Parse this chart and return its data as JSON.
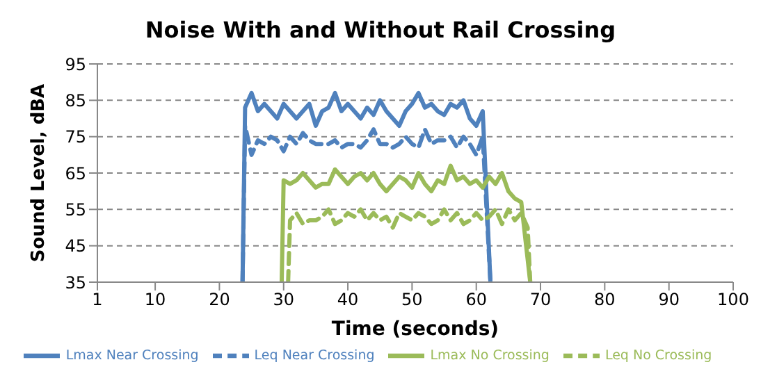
{
  "chart_data": {
    "type": "line",
    "title": "Noise With and Without Rail Crossing",
    "xlabel": "Time (seconds)",
    "ylabel": "Sound Level, dBA",
    "xlim": [
      1,
      100
    ],
    "xticks": [
      1,
      10,
      20,
      30,
      40,
      50,
      60,
      70,
      80,
      90,
      100
    ],
    "ylim": [
      35,
      95
    ],
    "yticks": [
      35,
      45,
      55,
      65,
      75,
      85,
      95
    ],
    "grid": "y",
    "legend": "bottom",
    "marker": "none",
    "series": [
      {
        "name": "Lmax Near Crossing",
        "color": "#4f81bd",
        "line_style": "solid",
        "x": [
          23.6,
          24,
          25,
          26,
          27,
          28,
          29,
          30,
          31,
          32,
          33,
          34,
          35,
          36,
          37,
          38,
          39,
          40,
          41,
          42,
          43,
          44,
          45,
          46,
          47,
          48,
          49,
          50,
          51,
          52,
          53,
          54,
          55,
          56,
          57,
          58,
          59,
          60,
          61,
          62.2
        ],
        "values": [
          35,
          83,
          87,
          82,
          84,
          82,
          80,
          84,
          82,
          80,
          82,
          84,
          78,
          82,
          83,
          87,
          82,
          84,
          82,
          80,
          83,
          81,
          85,
          82,
          80,
          78,
          82,
          84,
          87,
          83,
          84,
          82,
          81,
          84,
          83,
          85,
          80,
          78,
          82,
          35
        ]
      },
      {
        "name": "Leq Near Crossing",
        "color": "#4f81bd",
        "line_style": "dashed",
        "x": [
          23.6,
          24,
          25,
          26,
          27,
          28,
          29,
          30,
          31,
          32,
          33,
          34,
          35,
          36,
          37,
          38,
          39,
          40,
          41,
          42,
          43,
          44,
          45,
          46,
          47,
          48,
          49,
          50,
          51,
          52,
          53,
          54,
          55,
          56,
          57,
          58,
          59,
          60,
          61,
          62.2
        ],
        "values": [
          35,
          78,
          70,
          74,
          73,
          75,
          74,
          71,
          75,
          73,
          76,
          74,
          73,
          73,
          73,
          74,
          72,
          73,
          73,
          72,
          74,
          77,
          73,
          73,
          72,
          73,
          75,
          73,
          72,
          77,
          73,
          74,
          74,
          75,
          72,
          75,
          73,
          70,
          75,
          35
        ]
      },
      {
        "name": "Lmax No Crossing",
        "color": "#9bbb59",
        "line_style": "solid",
        "x": [
          29.7,
          30,
          31,
          32,
          33,
          34,
          35,
          36,
          37,
          38,
          39,
          40,
          41,
          42,
          43,
          44,
          45,
          46,
          47,
          48,
          49,
          50,
          51,
          52,
          53,
          54,
          55,
          56,
          57,
          58,
          59,
          60,
          61,
          62,
          63,
          64,
          65,
          66,
          67,
          68.4
        ],
        "values": [
          35,
          63,
          62,
          63,
          65,
          63,
          61,
          62,
          62,
          66,
          64,
          62,
          64,
          65,
          63,
          65,
          62,
          60,
          62,
          64,
          63,
          61,
          65,
          62,
          60,
          63,
          62,
          67,
          63,
          64,
          62,
          63,
          61,
          64,
          62,
          65,
          60,
          58,
          57,
          35
        ]
      },
      {
        "name": "Leq No Crossing",
        "color": "#9bbb59",
        "line_style": "dashed",
        "x": [
          30.7,
          31,
          32,
          33,
          34,
          35,
          36,
          37,
          38,
          39,
          40,
          41,
          42,
          43,
          44,
          45,
          46,
          47,
          48,
          49,
          50,
          51,
          52,
          53,
          54,
          55,
          56,
          57,
          58,
          59,
          60,
          61,
          62,
          63,
          64,
          65,
          66,
          67,
          68,
          68.4
        ],
        "values": [
          35,
          52,
          54,
          51,
          52,
          52,
          53,
          55,
          51,
          52,
          54,
          53,
          55,
          52,
          54,
          52,
          53,
          50,
          54,
          53,
          52,
          54,
          53,
          51,
          52,
          55,
          52,
          54,
          51,
          52,
          54,
          52,
          53,
          55,
          51,
          55,
          52,
          54,
          50,
          35
        ]
      }
    ]
  }
}
